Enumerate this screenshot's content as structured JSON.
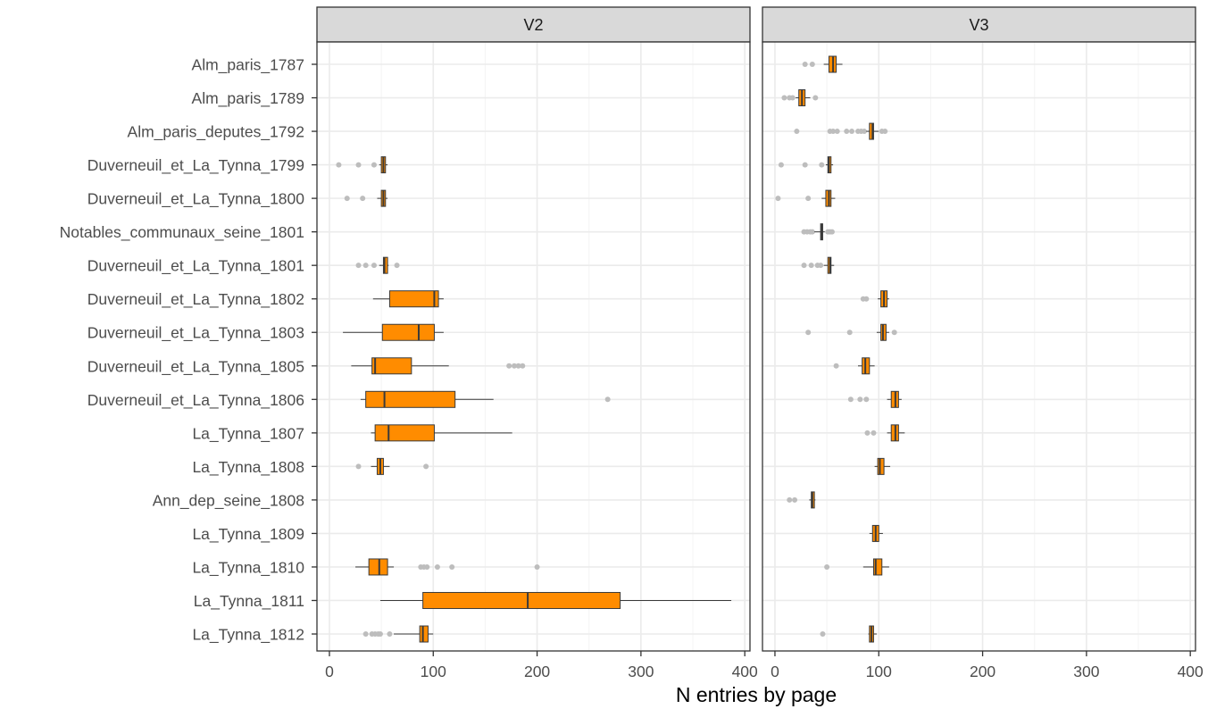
{
  "chart_data": {
    "type": "boxplot",
    "xlabel": "N entries by page",
    "ylabel": "",
    "xlim": [
      -12,
      405
    ],
    "xticks": [
      0,
      100,
      200,
      300,
      400
    ],
    "grid": true,
    "colors": {
      "box_fill": "#ff8c00",
      "box_stroke": "#3a3a3a",
      "outlier": "#bdbdbd",
      "strip_fill": "#d9d9d9",
      "grid_major": "#ebebeb",
      "grid_minor": "#f4f4f4",
      "panel_border": "#333333"
    },
    "categories": [
      "Alm_paris_1787",
      "Alm_paris_1789",
      "Alm_paris_deputes_1792",
      "Duverneuil_et_La_Tynna_1799",
      "Duverneuil_et_La_Tynna_1800",
      "Notables_communaux_seine_1801",
      "Duverneuil_et_La_Tynna_1801",
      "Duverneuil_et_La_Tynna_1802",
      "Duverneuil_et_La_Tynna_1803",
      "Duverneuil_et_La_Tynna_1805",
      "Duverneuil_et_La_Tynna_1806",
      "La_Tynna_1807",
      "La_Tynna_1808",
      "Ann_dep_seine_1808",
      "La_Tynna_1809",
      "La_Tynna_1810",
      "La_Tynna_1811",
      "La_Tynna_1812"
    ],
    "panels": [
      {
        "title": "V2",
        "boxes": [
          {
            "category": "Duverneuil_et_La_Tynna_1799",
            "whisker_low": 48,
            "q1": 50,
            "median": 52,
            "q3": 54,
            "whisker_high": 56,
            "outliers": [
              9,
              28,
              43
            ]
          },
          {
            "category": "Duverneuil_et_La_Tynna_1800",
            "whisker_low": 46,
            "q1": 50,
            "median": 52,
            "q3": 54,
            "whisker_high": 56,
            "outliers": [
              17,
              32
            ]
          },
          {
            "category": "Duverneuil_et_La_Tynna_1801",
            "whisker_low": 48,
            "q1": 52,
            "median": 53,
            "q3": 56,
            "whisker_high": 57,
            "outliers": [
              28,
              35,
              43,
              65
            ]
          },
          {
            "category": "Duverneuil_et_La_Tynna_1802",
            "whisker_low": 42,
            "q1": 58,
            "median": 101,
            "q3": 105,
            "whisker_high": 110,
            "outliers": []
          },
          {
            "category": "Duverneuil_et_La_Tynna_1803",
            "whisker_low": 13,
            "q1": 51,
            "median": 86,
            "q3": 101,
            "whisker_high": 110,
            "outliers": []
          },
          {
            "category": "Duverneuil_et_La_Tynna_1805",
            "whisker_low": 21,
            "q1": 41,
            "median": 44,
            "q3": 79,
            "whisker_high": 115,
            "outliers": [
              173,
              178,
              182,
              186
            ]
          },
          {
            "category": "Duverneuil_et_La_Tynna_1806",
            "whisker_low": 30,
            "q1": 35,
            "median": 53,
            "q3": 121,
            "whisker_high": 158,
            "outliers": [
              268
            ]
          },
          {
            "category": "La_Tynna_1807",
            "whisker_low": 40,
            "q1": 44,
            "median": 57,
            "q3": 101,
            "whisker_high": 176,
            "outliers": []
          },
          {
            "category": "La_Tynna_1808",
            "whisker_low": 40,
            "q1": 46,
            "median": 49,
            "q3": 52,
            "whisker_high": 58,
            "outliers": [
              28,
              93
            ]
          },
          {
            "category": "La_Tynna_1810",
            "whisker_low": 25,
            "q1": 38,
            "median": 48,
            "q3": 56,
            "whisker_high": 62,
            "outliers": [
              88,
              91,
              94,
              104,
              118,
              200
            ]
          },
          {
            "category": "La_Tynna_1811",
            "whisker_low": 49,
            "q1": 90,
            "median": 191,
            "q3": 280,
            "whisker_high": 387,
            "outliers": []
          },
          {
            "category": "La_Tynna_1812",
            "whisker_low": 62,
            "q1": 87,
            "median": 90,
            "q3": 95,
            "whisker_high": 100,
            "outliers": [
              35,
              41,
              44,
              47,
              49,
              58
            ]
          }
        ]
      },
      {
        "title": "V3",
        "boxes": [
          {
            "category": "Alm_paris_1787",
            "whisker_low": 47,
            "q1": 52,
            "median": 56,
            "q3": 59,
            "whisker_high": 65,
            "outliers": [
              29,
              36
            ]
          },
          {
            "category": "Alm_paris_1789",
            "whisker_low": 20,
            "q1": 23,
            "median": 26,
            "q3": 29,
            "whisker_high": 34,
            "outliers": [
              9,
              14,
              17,
              39
            ]
          },
          {
            "category": "Alm_paris_deputes_1792",
            "whisker_low": 88,
            "q1": 91,
            "median": 94,
            "q3": 95,
            "whisker_high": 100,
            "outliers": [
              21,
              53,
              56,
              60,
              69,
              74,
              80,
              83,
              86,
              103,
              106
            ]
          },
          {
            "category": "Duverneuil_et_La_Tynna_1799",
            "whisker_low": 49,
            "q1": 51,
            "median": 52,
            "q3": 54,
            "whisker_high": 56,
            "outliers": [
              6,
              29,
              45
            ]
          },
          {
            "category": "Duverneuil_et_La_Tynna_1800",
            "whisker_low": 45,
            "q1": 49,
            "median": 52,
            "q3": 54,
            "whisker_high": 58,
            "outliers": [
              3,
              32
            ]
          },
          {
            "category": "Notables_communaux_seine_1801",
            "whisker_low": 38,
            "q1": 44,
            "median": 45,
            "q3": 46,
            "whisker_high": 48,
            "outliers": [
              28,
              31,
              34,
              36,
              51,
              53,
              55
            ]
          },
          {
            "category": "Duverneuil_et_La_Tynna_1801",
            "whisker_low": 47,
            "q1": 51,
            "median": 53,
            "q3": 54,
            "whisker_high": 57,
            "outliers": [
              28,
              35,
              41,
              44
            ]
          },
          {
            "category": "Duverneuil_et_La_Tynna_1802",
            "whisker_low": 99,
            "q1": 102,
            "median": 105,
            "q3": 108,
            "whisker_high": 110,
            "outliers": [
              85,
              88
            ]
          },
          {
            "category": "Duverneuil_et_La_Tynna_1803",
            "whisker_low": 98,
            "q1": 102,
            "median": 104,
            "q3": 107,
            "whisker_high": 110,
            "outliers": [
              32,
              72,
              115
            ]
          },
          {
            "category": "Duverneuil_et_La_Tynna_1805",
            "whisker_low": 80,
            "q1": 84,
            "median": 87,
            "q3": 91,
            "whisker_high": 96,
            "outliers": [
              59
            ]
          },
          {
            "category": "Duverneuil_et_La_Tynna_1806",
            "whisker_low": 108,
            "q1": 112,
            "median": 116,
            "q3": 119,
            "whisker_high": 122,
            "outliers": [
              73,
              82,
              88
            ]
          },
          {
            "category": "La_Tynna_1807",
            "whisker_low": 108,
            "q1": 112,
            "median": 116,
            "q3": 119,
            "whisker_high": 125,
            "outliers": [
              89,
              95
            ]
          },
          {
            "category": "La_Tynna_1808",
            "whisker_low": 96,
            "q1": 99,
            "median": 101,
            "q3": 105,
            "whisker_high": 111,
            "outliers": []
          },
          {
            "category": "Ann_dep_seine_1808",
            "whisker_low": 33,
            "q1": 35,
            "median": 36,
            "q3": 38,
            "whisker_high": 39,
            "outliers": [
              14,
              19
            ]
          },
          {
            "category": "La_Tynna_1809",
            "whisker_low": 91,
            "q1": 94,
            "median": 97,
            "q3": 100,
            "whisker_high": 104,
            "outliers": []
          },
          {
            "category": "La_Tynna_1810",
            "whisker_low": 85,
            "q1": 95,
            "median": 97,
            "q3": 103,
            "whisker_high": 110,
            "outliers": [
              50
            ]
          },
          {
            "category": "La_Tynna_1812",
            "whisker_low": 90,
            "q1": 91,
            "median": 93,
            "q3": 95,
            "whisker_high": 98,
            "outliers": [
              46
            ]
          }
        ]
      }
    ]
  }
}
